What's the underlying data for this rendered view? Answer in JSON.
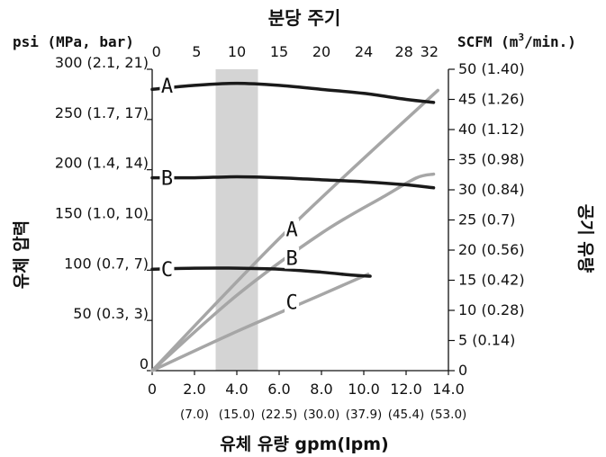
{
  "chart_data": {
    "type": "line",
    "title": "분당 주기",
    "xlabel": "유체 유량 gpm(lpm)",
    "ylabel_left": "유체 압력",
    "ylabel_right": "공기 유량",
    "left_unit": "psi (MPa, bar)",
    "right_unit_prefix": "SCFM (m",
    "right_unit_sup": "3",
    "right_unit_suffix": "/min.)",
    "xlim": [
      0,
      14
    ],
    "ylim_left": [
      0,
      300
    ],
    "ylim_right": [
      0,
      50
    ],
    "x_ticks": [
      {
        "value": 0,
        "label": "0",
        "sub": ""
      },
      {
        "value": 2,
        "label": "2.0",
        "sub": "(7.0)"
      },
      {
        "value": 4,
        "label": "4.0",
        "sub": "(15.0)"
      },
      {
        "value": 6,
        "label": "6.0",
        "sub": "(22.5)"
      },
      {
        "value": 8,
        "label": "8.0",
        "sub": "(30.0)"
      },
      {
        "value": 10,
        "label": "10.0",
        "sub": "(37.9)"
      },
      {
        "value": 12,
        "label": "12.0",
        "sub": "(45.4)"
      },
      {
        "value": 14,
        "label": "14.0",
        "sub": "(53.0)"
      }
    ],
    "top_ticks": [
      {
        "value": 0,
        "x": 0.2,
        "label": "0"
      },
      {
        "value": 5,
        "x": 2.1,
        "label": "5"
      },
      {
        "value": 10,
        "x": 4.0,
        "label": "10"
      },
      {
        "value": 15,
        "x": 6.0,
        "label": "15"
      },
      {
        "value": 20,
        "x": 8.0,
        "label": "20"
      },
      {
        "value": 24,
        "x": 10.0,
        "label": "24"
      },
      {
        "value": 28,
        "x": 11.9,
        "label": "28"
      },
      {
        "value": 32,
        "x": 13.1,
        "label": "32"
      }
    ],
    "left_ticks": [
      {
        "value": 0,
        "label": "0"
      },
      {
        "value": 50,
        "label": "50 (0.3, 3)"
      },
      {
        "value": 100,
        "label": "100 (0.7, 7)"
      },
      {
        "value": 150,
        "label": "150 (1.0, 10)"
      },
      {
        "value": 200,
        "label": "200 (1.4, 14)"
      },
      {
        "value": 250,
        "label": "250 (1.7, 17)"
      },
      {
        "value": 300,
        "label": "300 (2.1, 21)"
      }
    ],
    "right_ticks": [
      {
        "value": 0,
        "label": "0"
      },
      {
        "value": 5,
        "label": "5 (0.14)"
      },
      {
        "value": 10,
        "label": "10 (0.28)"
      },
      {
        "value": 15,
        "label": "15 (0.42)"
      },
      {
        "value": 20,
        "label": "20 (0.56)"
      },
      {
        "value": 25,
        "label": "25 (0.7)"
      },
      {
        "value": 30,
        "label": "30 (0.84)"
      },
      {
        "value": 35,
        "label": "35 (0.98)"
      },
      {
        "value": 40,
        "label": "40 (1.12)"
      },
      {
        "value": 45,
        "label": "45 (1.26)"
      },
      {
        "value": 50,
        "label": "50 (1.40)"
      }
    ],
    "shaded_band": {
      "x_from": 3,
      "x_to": 5,
      "color": "#d4d4d4"
    },
    "pressure_series": [
      {
        "name": "A",
        "axis": "left",
        "color": "#1a1a1a",
        "points": [
          [
            0,
            280
          ],
          [
            2,
            284
          ],
          [
            4,
            286
          ],
          [
            6,
            284
          ],
          [
            8,
            280
          ],
          [
            10,
            276
          ],
          [
            12,
            270
          ],
          [
            13.3,
            267
          ]
        ]
      },
      {
        "name": "B",
        "axis": "left",
        "color": "#1a1a1a",
        "points": [
          [
            0,
            192
          ],
          [
            2,
            192
          ],
          [
            4,
            193
          ],
          [
            6,
            192
          ],
          [
            8,
            190
          ],
          [
            10,
            188
          ],
          [
            12,
            185
          ],
          [
            13.3,
            182
          ]
        ]
      },
      {
        "name": "C",
        "axis": "left",
        "color": "#1a1a1a",
        "points": [
          [
            0,
            101
          ],
          [
            2,
            102
          ],
          [
            4,
            102
          ],
          [
            6,
            101
          ],
          [
            8,
            98
          ],
          [
            9.5,
            95
          ],
          [
            10.3,
            94
          ]
        ]
      }
    ],
    "airflow_series": [
      {
        "name": "A",
        "axis": "right",
        "color": "#a6a6a6",
        "points": [
          [
            0,
            0
          ],
          [
            6.4,
            23.3
          ],
          [
            13.5,
            46.5
          ]
        ]
      },
      {
        "name": "B",
        "axis": "right",
        "color": "#a6a6a6",
        "points": [
          [
            0,
            0
          ],
          [
            4,
            12.5
          ],
          [
            8,
            22.8
          ],
          [
            11,
            29
          ],
          [
            12.5,
            32
          ],
          [
            13.3,
            32.6
          ]
        ]
      },
      {
        "name": "C",
        "axis": "right",
        "color": "#a6a6a6",
        "points": [
          [
            0,
            0
          ],
          [
            4,
            6.5
          ],
          [
            8,
            12.6
          ],
          [
            10.2,
            16
          ]
        ]
      }
    ],
    "curve_labels": [
      {
        "text": "A",
        "x": 0.7,
        "y": 284,
        "axis": "left"
      },
      {
        "text": "B",
        "x": 0.7,
        "y": 192,
        "axis": "left"
      },
      {
        "text": "C",
        "x": 0.7,
        "y": 101,
        "axis": "left"
      },
      {
        "text": "A",
        "x": 6.6,
        "y": 23.5,
        "axis": "right"
      },
      {
        "text": "B",
        "x": 6.6,
        "y": 18.7,
        "axis": "right"
      },
      {
        "text": "C",
        "x": 6.6,
        "y": 11.4,
        "axis": "right"
      }
    ]
  }
}
